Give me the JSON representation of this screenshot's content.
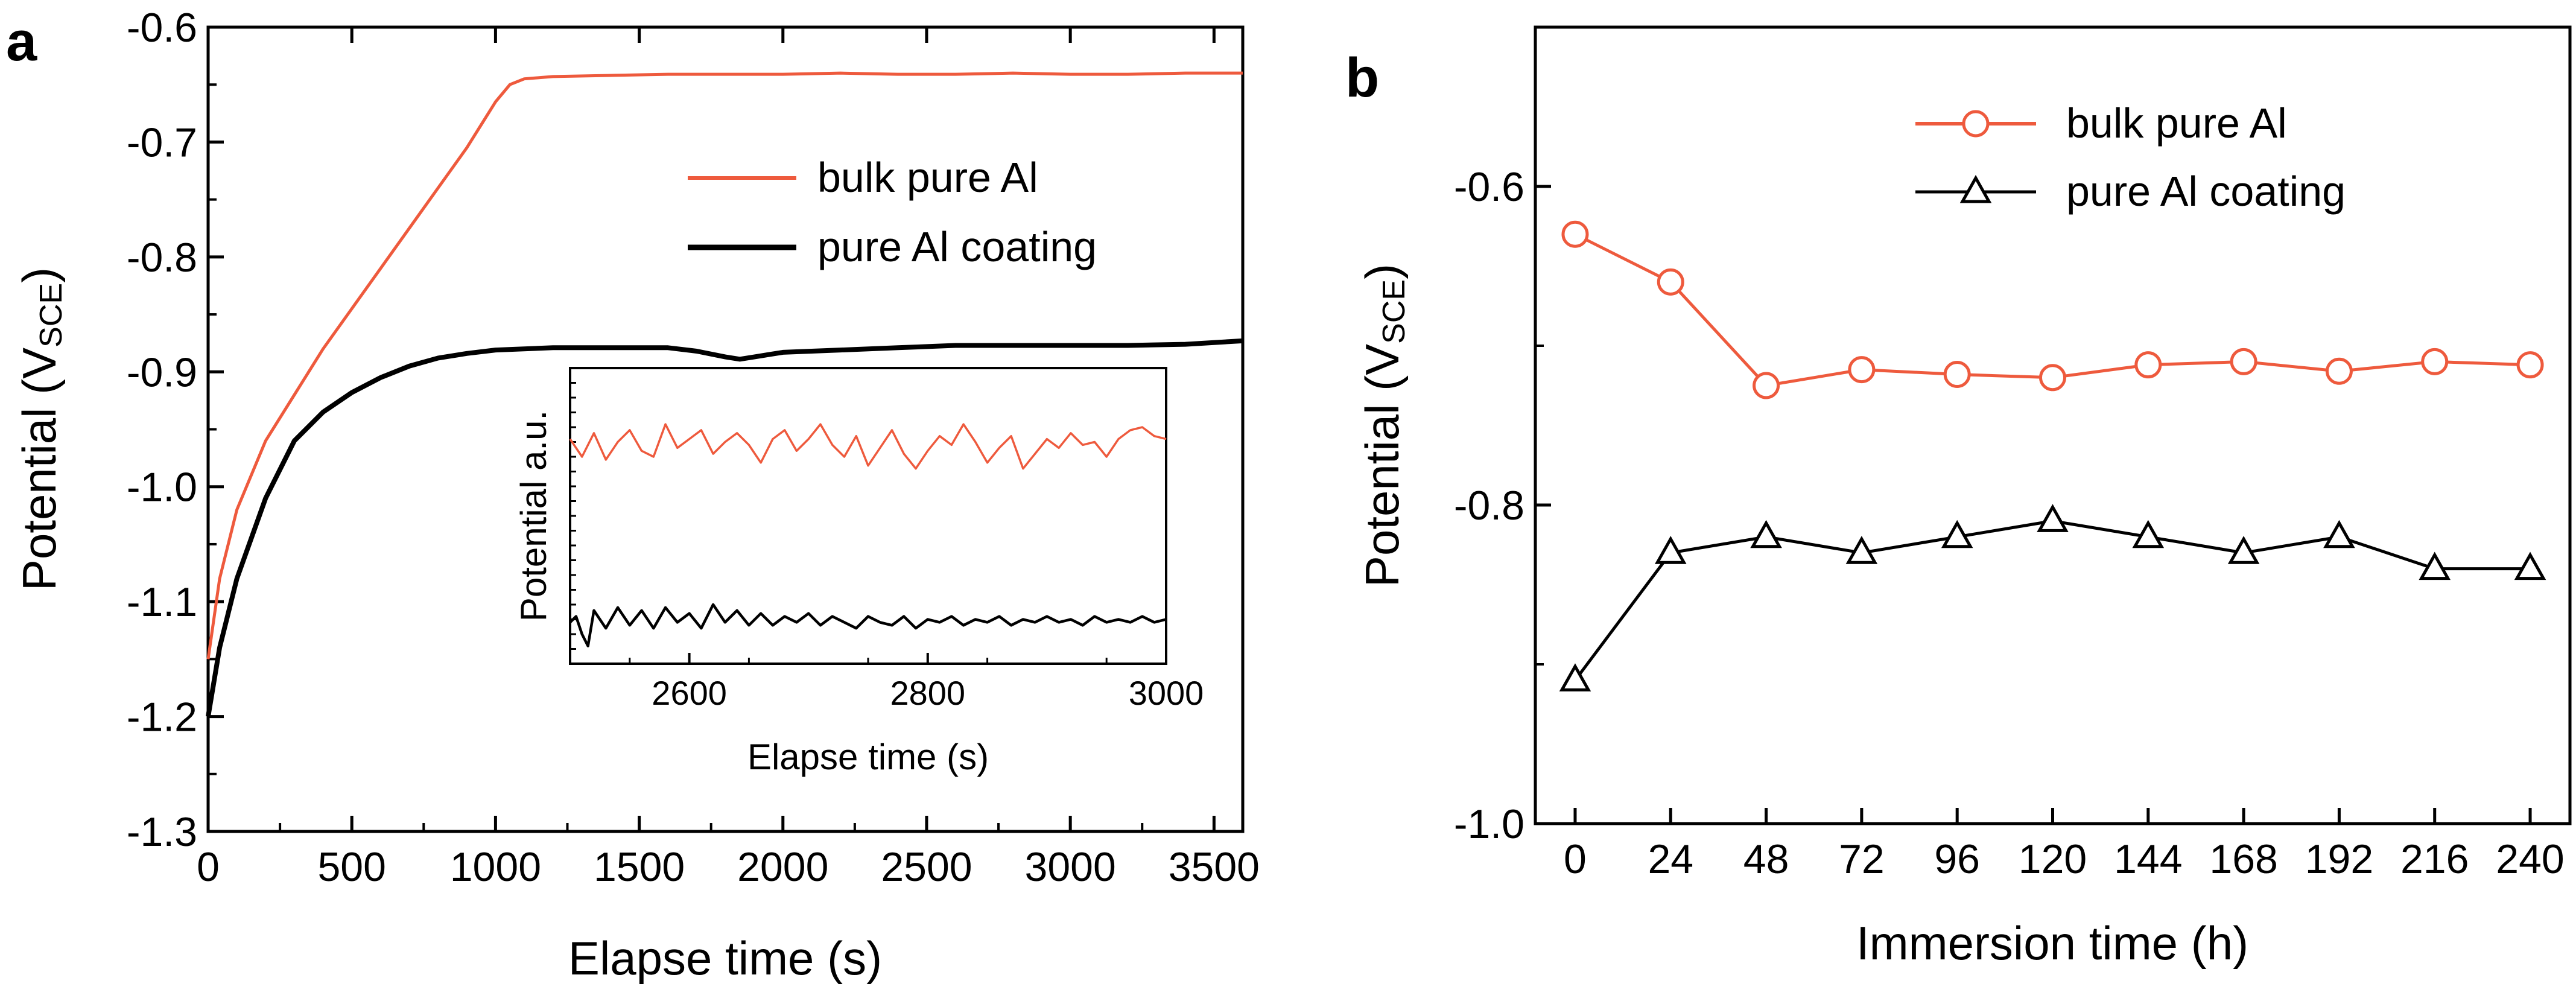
{
  "colors": {
    "bulk": "#ee5a3d",
    "coating": "#000000"
  },
  "chart_data": [
    {
      "id": "a",
      "panel_label": "a",
      "type": "line",
      "xlabel": "Elapse time (s)",
      "ylabel_main": "Potential (V",
      "ylabel_sub": "SCE",
      "ylabel_close": ")",
      "xlim": [
        0,
        3600
      ],
      "ylim": [
        -1.3,
        -0.6
      ],
      "xticks": [
        0,
        500,
        1000,
        1500,
        2000,
        2500,
        3000,
        3500
      ],
      "xtick_labels": [
        "0",
        "500",
        "1000",
        "1500",
        "2000",
        "2500",
        "3000",
        "3500"
      ],
      "yticks": [
        -1.3,
        -1.2,
        -1.1,
        -1.0,
        -0.9,
        -0.8,
        -0.7,
        -0.6
      ],
      "ytick_labels": [
        "-1.3",
        "-1.2",
        "-1.1",
        "-1.0",
        "-0.9",
        "-0.8",
        "-0.7",
        "-0.6"
      ],
      "legend_position": "upper-right",
      "series": [
        {
          "name": "bulk pure Al",
          "color": "#ee5a3d",
          "x": [
            0,
            40,
            100,
            200,
            300,
            400,
            500,
            600,
            700,
            800,
            900,
            950,
            1000,
            1050,
            1100,
            1200,
            1400,
            1600,
            1800,
            2000,
            2200,
            2400,
            2600,
            2800,
            3000,
            3200,
            3400,
            3600
          ],
          "y": [
            -1.15,
            -1.08,
            -1.02,
            -0.96,
            -0.92,
            -0.88,
            -0.845,
            -0.81,
            -0.775,
            -0.74,
            -0.705,
            -0.685,
            -0.665,
            -0.65,
            -0.645,
            -0.643,
            -0.642,
            -0.641,
            -0.641,
            -0.641,
            -0.64,
            -0.641,
            -0.641,
            -0.64,
            -0.641,
            -0.641,
            -0.64,
            -0.64
          ]
        },
        {
          "name": "pure Al coating",
          "color": "#000000",
          "x": [
            0,
            40,
            100,
            200,
            300,
            400,
            500,
            600,
            700,
            800,
            900,
            1000,
            1200,
            1400,
            1600,
            1700,
            1800,
            1850,
            1900,
            2000,
            2200,
            2400,
            2600,
            2800,
            3000,
            3200,
            3400,
            3600
          ],
          "y": [
            -1.2,
            -1.14,
            -1.08,
            -1.01,
            -0.96,
            -0.935,
            -0.918,
            -0.905,
            -0.895,
            -0.888,
            -0.884,
            -0.881,
            -0.879,
            -0.879,
            -0.879,
            -0.882,
            -0.887,
            -0.889,
            -0.887,
            -0.883,
            -0.881,
            -0.879,
            -0.877,
            -0.877,
            -0.877,
            -0.877,
            -0.876,
            -0.873
          ]
        }
      ],
      "inset": {
        "type": "line",
        "xlabel": "Elapse time (s)",
        "ylabel": "Potential a.u.",
        "xlim": [
          2500,
          3000
        ],
        "xticks": [
          2600,
          2800,
          3000
        ],
        "xtick_labels": [
          "2600",
          "2800",
          "3000"
        ],
        "ylim": [
          0,
          10
        ],
        "series": [
          {
            "name": "bulk pure Al",
            "color": "#ee5a3d",
            "x": [
              2500,
              2510,
              2520,
              2530,
              2540,
              2550,
              2560,
              2570,
              2580,
              2590,
              2600,
              2610,
              2620,
              2630,
              2640,
              2650,
              2660,
              2670,
              2680,
              2690,
              2700,
              2710,
              2720,
              2730,
              2740,
              2750,
              2760,
              2770,
              2780,
              2790,
              2800,
              2810,
              2820,
              2830,
              2840,
              2850,
              2860,
              2870,
              2880,
              2890,
              2900,
              2910,
              2920,
              2930,
              2940,
              2950,
              2960,
              2970,
              2980,
              2990,
              3000
            ],
            "y": [
              7.6,
              7.0,
              7.8,
              6.9,
              7.5,
              7.9,
              7.2,
              7.0,
              8.1,
              7.3,
              7.6,
              7.9,
              7.1,
              7.5,
              7.8,
              7.4,
              6.8,
              7.6,
              7.9,
              7.2,
              7.6,
              8.1,
              7.4,
              7.0,
              7.7,
              6.7,
              7.3,
              7.9,
              7.1,
              6.6,
              7.2,
              7.7,
              7.4,
              8.1,
              7.5,
              6.8,
              7.3,
              7.7,
              6.6,
              7.1,
              7.6,
              7.3,
              7.8,
              7.4,
              7.5,
              7.0,
              7.6,
              7.9,
              8.0,
              7.7,
              7.6
            ]
          },
          {
            "name": "pure Al coating",
            "color": "#000000",
            "x": [
              2500,
              2505,
              2510,
              2515,
              2520,
              2530,
              2540,
              2550,
              2560,
              2570,
              2580,
              2590,
              2600,
              2610,
              2620,
              2630,
              2640,
              2650,
              2660,
              2670,
              2680,
              2690,
              2700,
              2710,
              2720,
              2730,
              2740,
              2750,
              2760,
              2770,
              2780,
              2790,
              2800,
              2810,
              2820,
              2830,
              2840,
              2850,
              2860,
              2870,
              2880,
              2890,
              2900,
              2910,
              2920,
              2930,
              2940,
              2950,
              2960,
              2970,
              2980,
              2990,
              3000
            ],
            "y": [
              1.4,
              1.6,
              1.0,
              0.6,
              1.8,
              1.2,
              1.9,
              1.3,
              1.8,
              1.2,
              1.9,
              1.4,
              1.7,
              1.2,
              2.0,
              1.4,
              1.8,
              1.3,
              1.7,
              1.3,
              1.6,
              1.4,
              1.7,
              1.3,
              1.6,
              1.4,
              1.2,
              1.6,
              1.4,
              1.3,
              1.6,
              1.2,
              1.5,
              1.4,
              1.6,
              1.3,
              1.5,
              1.4,
              1.6,
              1.3,
              1.5,
              1.4,
              1.6,
              1.4,
              1.5,
              1.3,
              1.6,
              1.4,
              1.5,
              1.4,
              1.6,
              1.4,
              1.5
            ]
          }
        ]
      }
    },
    {
      "id": "b",
      "panel_label": "b",
      "type": "line",
      "xlabel": "Immersion time (h)",
      "ylabel_main": "Potential (V",
      "ylabel_sub": "SCE",
      "ylabel_close": ")",
      "xlim": [
        -10,
        250
      ],
      "ylim": [
        -1.0,
        -0.5
      ],
      "categories": [
        "0",
        "24",
        "48",
        "72",
        "96",
        "120",
        "144",
        "168",
        "192",
        "216",
        "240"
      ],
      "x": [
        0,
        24,
        48,
        72,
        96,
        120,
        144,
        168,
        192,
        216,
        240
      ],
      "yticks": [
        -1.0,
        -0.8,
        -0.6
      ],
      "ytick_labels": [
        "-1.0",
        "-0.8",
        "-0.6"
      ],
      "legend_position": "upper-right",
      "series": [
        {
          "name": "bulk pure Al",
          "color": "#ee5a3d",
          "marker": "circle",
          "values": [
            -0.63,
            -0.66,
            -0.725,
            -0.715,
            -0.718,
            -0.72,
            -0.712,
            -0.71,
            -0.716,
            -0.71,
            -0.712
          ]
        },
        {
          "name": "pure Al coating",
          "color": "#000000",
          "marker": "triangle",
          "values": [
            -0.91,
            -0.83,
            -0.82,
            -0.83,
            -0.82,
            -0.81,
            -0.82,
            -0.83,
            -0.82,
            -0.84,
            -0.84
          ]
        }
      ]
    }
  ]
}
